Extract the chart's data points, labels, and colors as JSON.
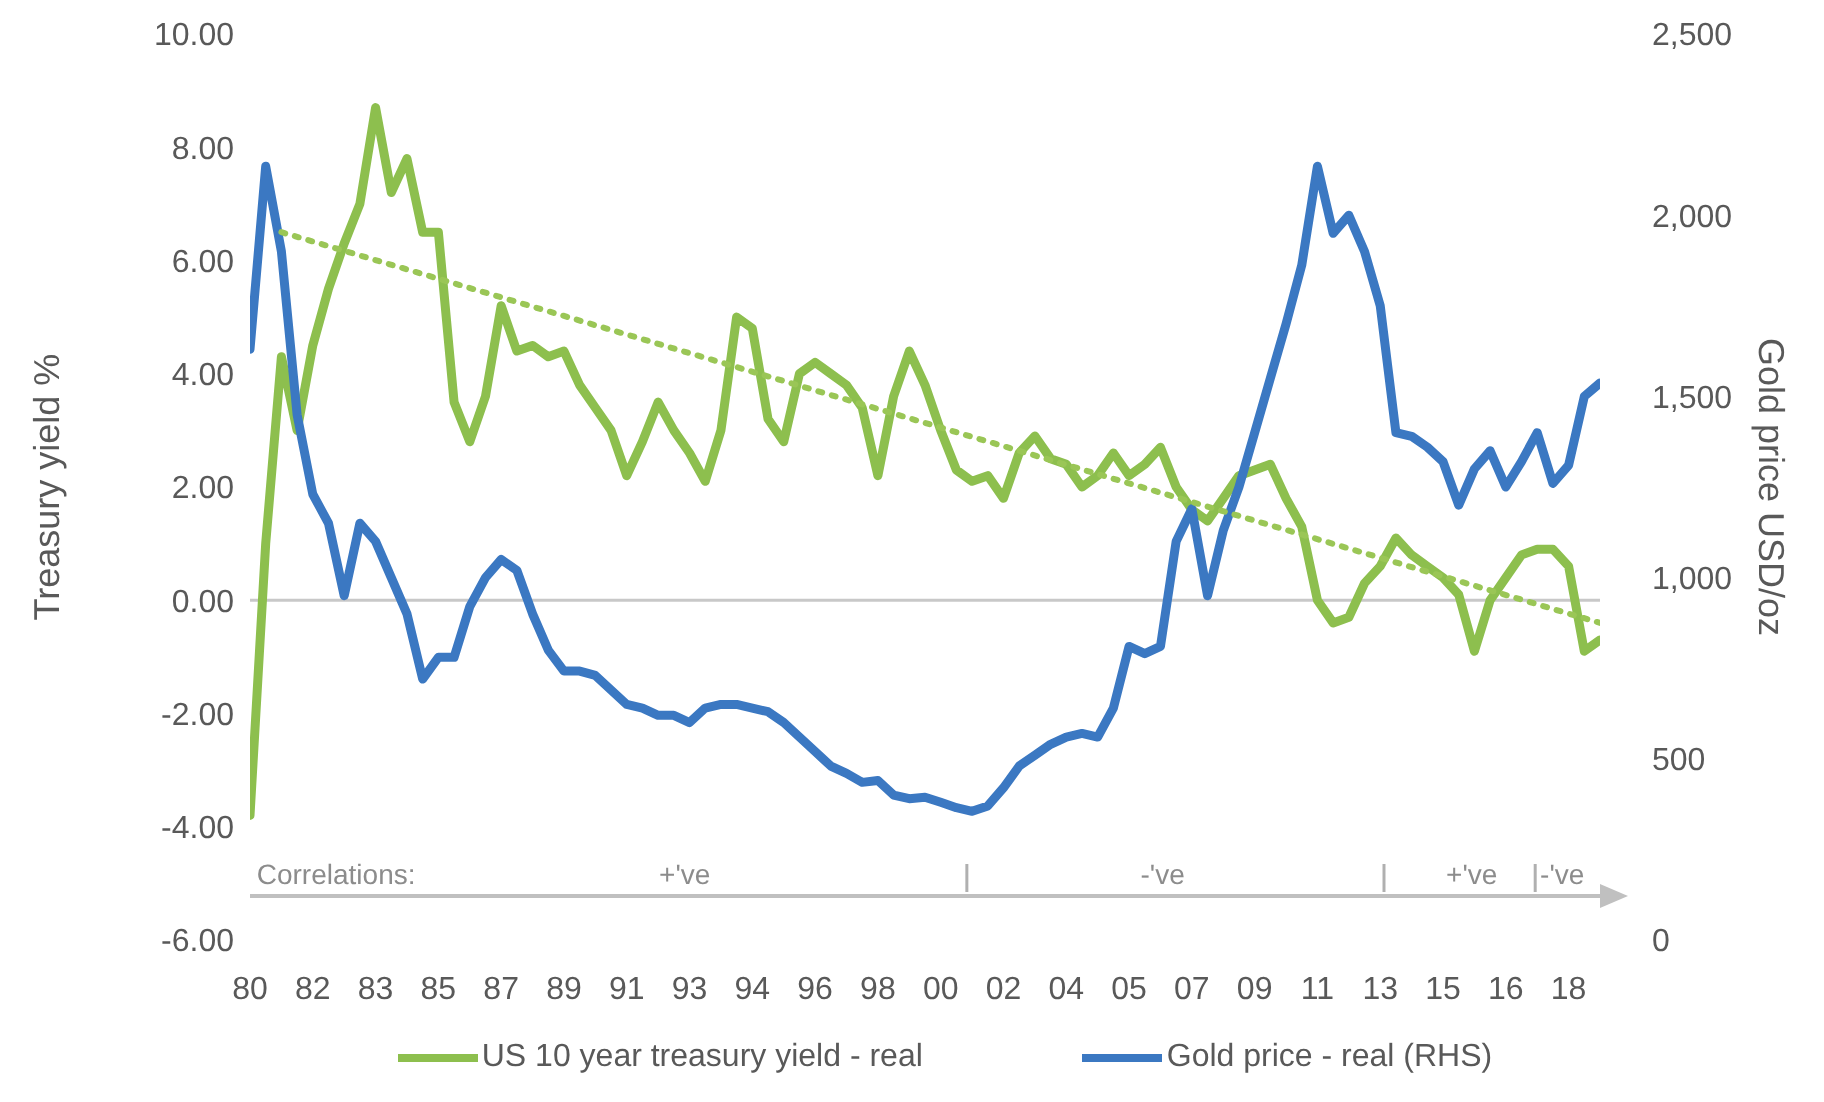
{
  "chart_data": {
    "type": "line",
    "ylabel": "Treasury yield %",
    "y2label": "Gold price USD/oz",
    "categories": [
      "80",
      null,
      null,
      null,
      "82",
      null,
      null,
      null,
      "83",
      null,
      null,
      null,
      "85",
      null,
      null,
      null,
      "87",
      null,
      null,
      null,
      "89",
      null,
      null,
      null,
      "91",
      null,
      null,
      null,
      "93",
      null,
      null,
      null,
      "94",
      null,
      null,
      null,
      "96",
      null,
      null,
      null,
      "98",
      null,
      null,
      null,
      "00",
      null,
      null,
      null,
      "02",
      null,
      null,
      null,
      "04",
      null,
      null,
      null,
      "05",
      null,
      null,
      null,
      "07",
      null,
      null,
      null,
      "09",
      null,
      null,
      null,
      "11",
      null,
      null,
      null,
      "13",
      null,
      null,
      null,
      "15",
      null,
      null,
      null,
      "16",
      null,
      null,
      null,
      "18",
      null,
      null
    ],
    "series": [
      {
        "name": "US 10 year treasury yield - real",
        "color": "#8dbf4e",
        "values": [
          -3.8,
          1.0,
          4.3,
          3.0,
          4.5,
          5.5,
          6.3,
          7.0,
          8.7,
          7.2,
          7.8,
          6.5,
          6.5,
          3.5,
          2.8,
          3.6,
          5.2,
          4.4,
          4.5,
          4.3,
          4.4,
          3.8,
          3.4,
          3.0,
          2.2,
          2.8,
          3.5,
          3.0,
          2.6,
          2.1,
          3.0,
          5.0,
          4.8,
          3.2,
          2.8,
          4.0,
          4.2,
          4.0,
          3.8,
          3.4,
          2.2,
          3.6,
          4.4,
          3.8,
          3.0,
          2.3,
          2.1,
          2.2,
          1.8,
          2.6,
          2.9,
          2.5,
          2.4,
          2.0,
          2.2,
          2.6,
          2.2,
          2.4,
          2.7,
          2.0,
          1.6,
          1.4,
          1.8,
          2.2,
          2.3,
          2.4,
          1.8,
          1.3,
          0.0,
          -0.4,
          -0.3,
          0.3,
          0.6,
          1.1,
          0.8,
          0.6,
          0.4,
          0.1,
          -0.9,
          0.0,
          0.4,
          0.8,
          0.9,
          0.9,
          0.6,
          -0.9,
          -0.7
        ]
      },
      {
        "name": "Gold price - real (RHS)",
        "color": "#3b78c2",
        "axis": "y2",
        "values": [
          1630,
          2135,
          1900,
          1450,
          1230,
          1150,
          950,
          1150,
          1100,
          1000,
          900,
          720,
          780,
          780,
          920,
          1000,
          1050,
          1020,
          900,
          800,
          742,
          742,
          730,
          690,
          650,
          640,
          620,
          620,
          600,
          640,
          650,
          650,
          640,
          630,
          600,
          560,
          520,
          480,
          460,
          435,
          440,
          400,
          390,
          394,
          380,
          365,
          355,
          370,
          420,
          480,
          510,
          540,
          560,
          570,
          560,
          640,
          810,
          790,
          810,
          1100,
          1190,
          950,
          1130,
          1250,
          1400,
          1550,
          1700,
          1862,
          2135,
          1950,
          2000,
          1900,
          1750,
          1400,
          1390,
          1360,
          1320,
          1200,
          1300,
          1350,
          1250,
          1320,
          1400,
          1260,
          1310,
          1500,
          1537
        ]
      },
      {
        "color": "#9ac656",
        "line_style": "dotted",
        "values": [
          null,
          null,
          6.5,
          null,
          null,
          null,
          null,
          null,
          null,
          null,
          null,
          null,
          null,
          null,
          null,
          null,
          null,
          null,
          null,
          null,
          null,
          null,
          null,
          null,
          null,
          null,
          null,
          null,
          null,
          null,
          null,
          null,
          null,
          null,
          null,
          null,
          null,
          null,
          null,
          null,
          null,
          null,
          null,
          null,
          null,
          null,
          null,
          null,
          null,
          null,
          null,
          null,
          null,
          null,
          null,
          null,
          null,
          null,
          null,
          null,
          null,
          null,
          null,
          null,
          null,
          null,
          null,
          null,
          null,
          null,
          null,
          null,
          null,
          null,
          null,
          null,
          null,
          null,
          null,
          null,
          null,
          null,
          null,
          null,
          null,
          null,
          -0.4
        ]
      }
    ],
    "ylim": [
      -6,
      10
    ],
    "yticks": [
      {
        "value": -6,
        "label": "-6.00"
      },
      {
        "value": -4,
        "label": "-4.00"
      },
      {
        "value": -2,
        "label": "-2.00"
      },
      {
        "value": 0,
        "label": "0.00"
      },
      {
        "value": 2,
        "label": "2.00"
      },
      {
        "value": 4,
        "label": "4.00"
      },
      {
        "value": 6,
        "label": "6.00"
      },
      {
        "value": 8,
        "label": "8.00"
      },
      {
        "value": 10,
        "label": "10.00"
      }
    ],
    "y2lim": [
      0,
      2500
    ],
    "y2ticks": [
      0,
      500,
      {
        "value": 1000,
        "label": "1,000"
      },
      {
        "value": 1500,
        "label": "1,500"
      },
      {
        "value": 2000,
        "label": "2,000"
      },
      {
        "value": 2500,
        "label": "2,500"
      }
    ],
    "ref_lines": [
      {
        "axis": "y",
        "value": 0,
        "color": "#c8c8c8"
      }
    ],
    "annotations": [
      "Correlations:",
      "+'ve",
      "-'ve",
      "+'ve",
      "-'ve"
    ],
    "grid": false,
    "legend": "bottom"
  }
}
